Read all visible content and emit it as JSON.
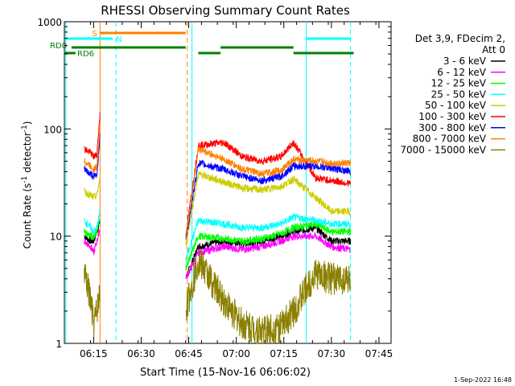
{
  "chart_data": {
    "type": "line",
    "title": "RHESSI Observing Summary Count Rates",
    "xlabel": "Start Time (15-Nov-16 06:06:02)",
    "ylabel": "Count Rate (s⁻¹ detector⁻¹)",
    "ylabel_parts": {
      "main": "Count Rate (s",
      "sup1": "-1",
      "mid": " detector",
      "sup2": "-1",
      "end": ")"
    },
    "yscale": "log",
    "ylim": [
      1,
      1000
    ],
    "xlim": [
      "06:06:02",
      "07:46:00"
    ],
    "x_ticks": [
      "06:15",
      "06:30",
      "06:45",
      "07:00",
      "07:15",
      "07:30",
      "07:45"
    ],
    "y_ticks": [
      "1",
      "10",
      "100",
      "1000"
    ],
    "legend_header": [
      "Det 3,9, FDecim 2,",
      "Att 0"
    ],
    "series": [
      {
        "name": "3 - 6 keV",
        "color": "#000000",
        "values": [
          10,
          9,
          9,
          11,
          14,
          4,
          8,
          9,
          8.5,
          9,
          10,
          11,
          12,
          9,
          9
        ]
      },
      {
        "name": "6 - 12 keV",
        "color": "#ff00ff",
        "values": [
          9,
          8,
          7,
          9,
          12,
          4,
          7,
          8,
          7.5,
          8,
          9,
          10,
          10,
          8,
          7.5
        ]
      },
      {
        "name": "12 - 25 keV",
        "color": "#00ff00",
        "values": [
          11,
          10,
          10,
          11,
          15,
          5,
          10,
          9.5,
          9,
          9.5,
          10.5,
          12,
          13,
          11,
          11
        ]
      },
      {
        "name": "25 - 50 keV",
        "color": "#00ffff",
        "values": [
          14,
          12,
          11,
          12,
          17,
          6,
          14,
          13,
          12,
          12,
          13,
          15,
          14,
          13,
          13
        ]
      },
      {
        "name": "50 - 100 keV",
        "color": "#cccc00",
        "values": [
          26,
          24,
          23,
          24,
          35,
          8,
          38,
          32,
          28,
          27,
          29,
          34,
          23,
          17,
          17
        ]
      },
      {
        "name": "100 - 300 keV",
        "color": "#ff0000",
        "values": [
          65,
          60,
          55,
          58,
          140,
          10,
          70,
          75,
          55,
          50,
          55,
          75,
          35,
          33,
          31
        ]
      },
      {
        "name": "300 - 800 keV",
        "color": "#0000ff",
        "values": [
          42,
          38,
          36,
          37,
          90,
          9,
          48,
          42,
          36,
          33,
          36,
          45,
          45,
          43,
          40
        ]
      },
      {
        "name": "800 - 7000 keV",
        "color": "#ff8000",
        "values": [
          50,
          45,
          42,
          44,
          110,
          9,
          65,
          52,
          42,
          38,
          41,
          52,
          50,
          48,
          48
        ]
      },
      {
        "name": "7000 - 15000 keV",
        "color": "#8b8000",
        "values": [
          4.5,
          2.5,
          1.5,
          2.0,
          3.0,
          2.0,
          6.0,
          2.5,
          1.5,
          1.3,
          1.4,
          2.0,
          4.5,
          4.0,
          4.0
        ]
      }
    ],
    "x_minutes": [
      6,
      8,
      9,
      10,
      11,
      38,
      42,
      50,
      56,
      62,
      68,
      72,
      79,
      84,
      90
    ],
    "gaps": [
      [
        11,
        38
      ]
    ],
    "flags": {
      "saa": {
        "label": "S",
        "start": 11,
        "end": 38,
        "color": "#ff8000"
      },
      "night": {
        "label": "N",
        "segments": [
          [
            0,
            15
          ],
          [
            76,
            90
          ]
        ],
        "color": "#00ffff"
      },
      "rd0": {
        "label": "RD0",
        "segments": [
          [
            2,
            38
          ],
          [
            42,
            49
          ],
          [
            49,
            72
          ],
          [
            72,
            91
          ]
        ],
        "color": "#008000"
      },
      "rd6": {
        "label": "RD6",
        "segments": [
          [
            0,
            2
          ]
        ],
        "color": "#008000"
      }
    },
    "vlines": [
      {
        "minute": 0.2,
        "color": "#00ffff",
        "style": "solid"
      },
      {
        "minute": 11,
        "color": "#ff8000",
        "style": "solid"
      },
      {
        "minute": 16,
        "color": "#00ffff",
        "style": "dashed"
      },
      {
        "minute": 38.5,
        "color": "#ff8000",
        "style": "dashed"
      },
      {
        "minute": 40,
        "color": "#00ffff",
        "style": "solid"
      },
      {
        "minute": 76,
        "color": "#00ffff",
        "style": "solid"
      },
      {
        "minute": 90,
        "color": "#00ffff",
        "style": "dashed"
      }
    ],
    "grid": false
  },
  "footer": {
    "date": "1-Sep-2022 16:48"
  }
}
